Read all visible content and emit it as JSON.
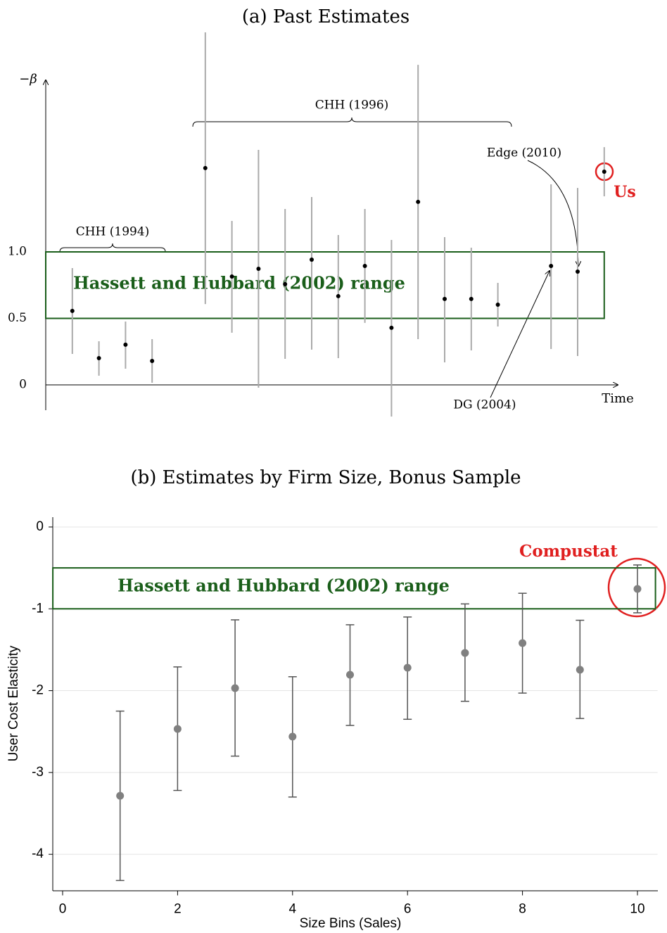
{
  "chart_data": [
    {
      "type": "scatter",
      "title": "(a) Past Estimates",
      "y_label": "−β",
      "x_label": "Time",
      "x": [
        1,
        2,
        3,
        4,
        6,
        7,
        8,
        9,
        10,
        11,
        12,
        13,
        14,
        15,
        16,
        17,
        19,
        20,
        21
      ],
      "values": [
        0.556,
        0.201,
        0.302,
        0.18,
        1.63,
        0.815,
        0.873,
        0.757,
        0.942,
        0.667,
        0.894,
        0.429,
        1.376,
        0.646,
        0.646,
        0.603,
        0.894,
        0.852,
        1.603
      ],
      "low": [
        0.233,
        0.069,
        0.122,
        0.016,
        0.608,
        0.392,
        -0.021,
        0.196,
        0.265,
        0.201,
        0.466,
        -0.238,
        0.344,
        0.169,
        0.259,
        0.439,
        0.27,
        0.217,
        1.418
      ],
      "high": [
        0.878,
        0.328,
        0.476,
        0.344,
        2.651,
        1.233,
        1.767,
        1.323,
        1.413,
        1.127,
        1.323,
        1.09,
        2.407,
        1.111,
        1.032,
        0.767,
        1.508,
        1.481,
        1.788
      ],
      "color": "#000000",
      "error_color": "#aaaaaa",
      "xlim": [
        0,
        21.5
      ],
      "ylim": [
        -0.25,
        2.7
      ],
      "yticks": [
        0,
        0.5,
        {
          "value": 1,
          "label": "1.0"
        }
      ],
      "range_box": {
        "label": "Hassett and Hubbard (2002) range",
        "low": 0.5,
        "high": 1,
        "color": "#1a5e1a"
      },
      "annotations": [
        "CHH (1994)",
        "CHH (1996)",
        "Edge (2010)",
        "DG (2004)",
        "Us"
      ]
    },
    {
      "type": "scatter",
      "title": "(b) Estimates by Firm Size, Bonus Sample",
      "y_label": "User Cost Elasticity",
      "x_label": "Size Bins (Sales)",
      "x": [
        1,
        2,
        3,
        4,
        5,
        6,
        7,
        8,
        9,
        10
      ],
      "values": [
        -3.285,
        -2.468,
        -1.969,
        -2.562,
        -1.806,
        -1.72,
        -1.539,
        -1.419,
        -1.745,
        -0.757
      ],
      "low": [
        -4.32,
        -3.22,
        -2.8,
        -3.3,
        -2.425,
        -2.35,
        -2.13,
        -2.03,
        -2.34,
        -1.049
      ],
      "high": [
        -2.25,
        -1.71,
        -1.135,
        -1.83,
        -1.195,
        -1.1,
        -0.94,
        -0.81,
        -1.14,
        -0.464
      ],
      "color": "#808080",
      "error_color": "#555555",
      "xlim": [
        -0.17,
        10.35
      ],
      "ylim": [
        -4.45,
        0.12
      ],
      "xticks": [
        0,
        2,
        4,
        6,
        8,
        10
      ],
      "yticks": [
        0,
        -1,
        -2,
        -3,
        -4
      ],
      "grid": true,
      "range_box": {
        "label": "Hassett and Hubbard (2002) range",
        "low": -1,
        "high": -0.5,
        "color": "#1a5e1a"
      },
      "annotations": [
        "Compustat"
      ]
    }
  ]
}
